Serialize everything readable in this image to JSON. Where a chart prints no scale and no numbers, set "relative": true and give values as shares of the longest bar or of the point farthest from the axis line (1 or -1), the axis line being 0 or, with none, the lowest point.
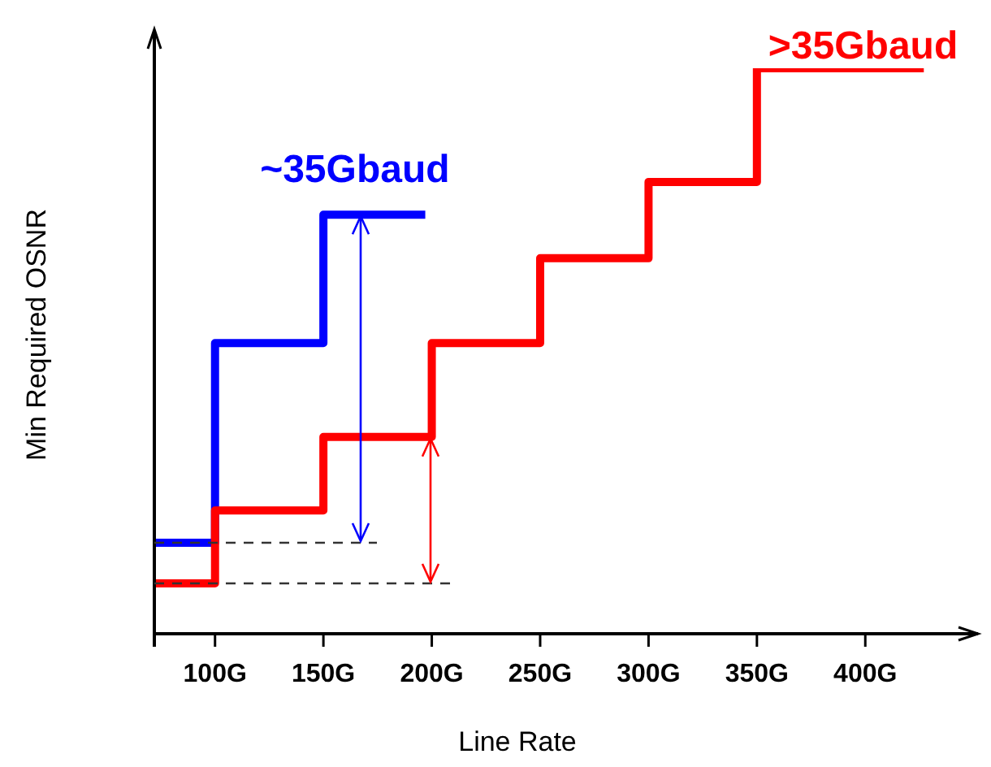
{
  "chart_data": {
    "type": "step",
    "relative": true,
    "xlabel": "Line Rate",
    "ylabel": "Min Required OSNR",
    "xlim": [
      72,
      452
    ],
    "xticks": [
      {
        "value": 100,
        "label": "100G"
      },
      {
        "value": 150,
        "label": "150G"
      },
      {
        "value": 200,
        "label": "200G"
      },
      {
        "value": 250,
        "label": "250G"
      },
      {
        "value": 300,
        "label": "300G"
      },
      {
        "value": 350,
        "label": "350G"
      },
      {
        "value": 400,
        "label": "400G"
      }
    ],
    "marker": "none",
    "line_style": "solid",
    "series": [
      {
        "name": "~35Gbaud",
        "color": "#0000ff",
        "x": [
          72,
          100,
          150,
          197
        ],
        "values": [
          0.161,
          0.514,
          0.741,
          0.741
        ]
      },
      {
        "name": ">35Gbaud",
        "color": "#ff0000",
        "x": [
          72,
          100,
          150,
          200,
          250,
          300,
          350,
          427
        ],
        "values": [
          0.089,
          0.218,
          0.348,
          0.514,
          0.664,
          0.799,
          1,
          1
        ]
      }
    ]
  }
}
